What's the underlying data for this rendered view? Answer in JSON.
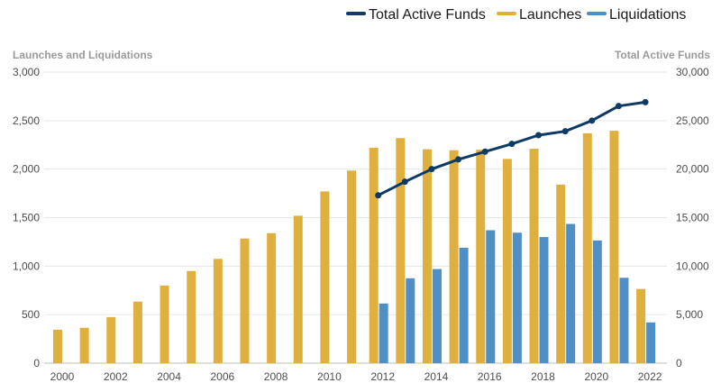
{
  "chart_data": {
    "type": "bar",
    "x": [
      2000,
      2001,
      2002,
      2003,
      2004,
      2005,
      2006,
      2007,
      2008,
      2009,
      2010,
      2011,
      2012,
      2013,
      2014,
      2015,
      2016,
      2017,
      2018,
      2019,
      2020,
      2021,
      2022
    ],
    "x_tick_labels": [
      "2000",
      "2002",
      "2004",
      "2006",
      "2008",
      "2010",
      "2012",
      "2014",
      "2016",
      "2018",
      "2020",
      "2022"
    ],
    "left_axis": {
      "label": "Launches and Liquidations",
      "ylim": [
        0,
        3000
      ],
      "tick_labels": [
        "0",
        "500",
        "1,000",
        "1,500",
        "2,000",
        "2,500",
        "3,000"
      ]
    },
    "right_axis": {
      "label": "Total Active Funds",
      "ylim": [
        0,
        30000
      ],
      "tick_labels": [
        "0",
        "5,000",
        "10,000",
        "15,000",
        "20,000",
        "25,000",
        "30,000"
      ]
    },
    "series": [
      {
        "name": "Launches",
        "kind": "bar",
        "axis": "left",
        "color": "#e0b03f",
        "values": [
          345,
          365,
          475,
          635,
          800,
          950,
          1075,
          1285,
          1340,
          1520,
          1770,
          1985,
          2220,
          2320,
          2205,
          2195,
          2200,
          2105,
          2210,
          1840,
          2370,
          2395,
          765
        ]
      },
      {
        "name": "Liquidations",
        "kind": "bar",
        "axis": "left",
        "color": "#4f8fc6",
        "values": [
          null,
          null,
          null,
          null,
          null,
          null,
          null,
          null,
          null,
          null,
          null,
          null,
          615,
          875,
          970,
          1190,
          1370,
          1345,
          1300,
          1435,
          1265,
          880,
          420
        ]
      },
      {
        "name": "Total Active Funds",
        "kind": "line",
        "axis": "right",
        "color": "#0d3b66",
        "values": [
          null,
          null,
          null,
          null,
          null,
          null,
          null,
          null,
          null,
          null,
          null,
          null,
          17300,
          18700,
          20000,
          21000,
          21800,
          22600,
          23500,
          23900,
          25000,
          26500,
          26900
        ]
      }
    ],
    "legend": {
      "placement": "top-right",
      "items": [
        "Total Active Funds",
        "Launches",
        "Liquidations"
      ]
    },
    "grid": true
  }
}
